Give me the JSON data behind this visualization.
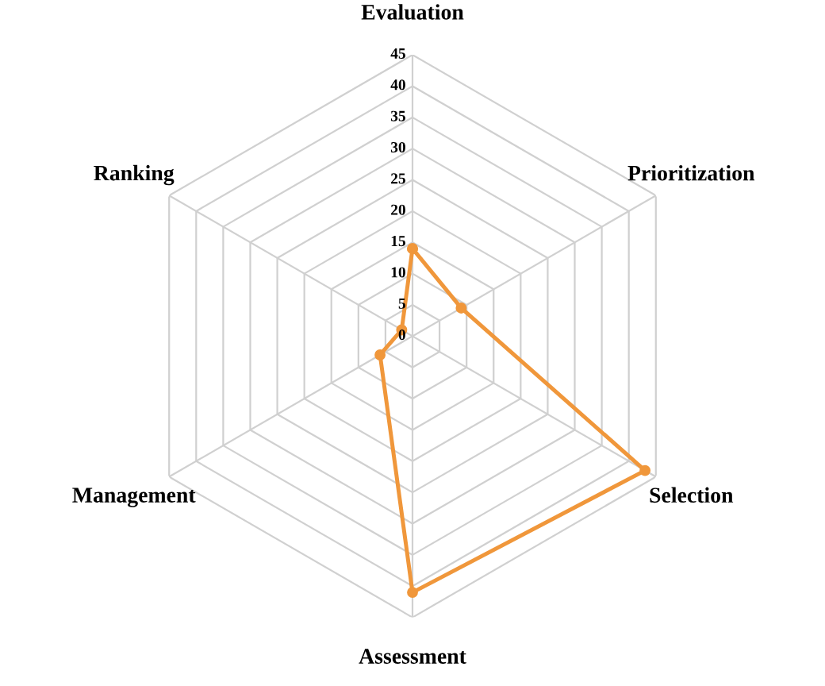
{
  "chart_data": {
    "type": "radar",
    "categories": [
      "Evaluation",
      "Prioritization",
      "Selection",
      "Assessment",
      "Management",
      "Ranking"
    ],
    "series": [
      {
        "color": "#f0973b",
        "values": [
          14,
          9,
          43,
          41,
          6,
          2
        ]
      }
    ],
    "ylim": [
      0,
      45
    ],
    "yticks": [
      0,
      5,
      10,
      15,
      20,
      25,
      30,
      35,
      40,
      45
    ],
    "grid": true,
    "marker": "circle",
    "line_style": "solid"
  }
}
